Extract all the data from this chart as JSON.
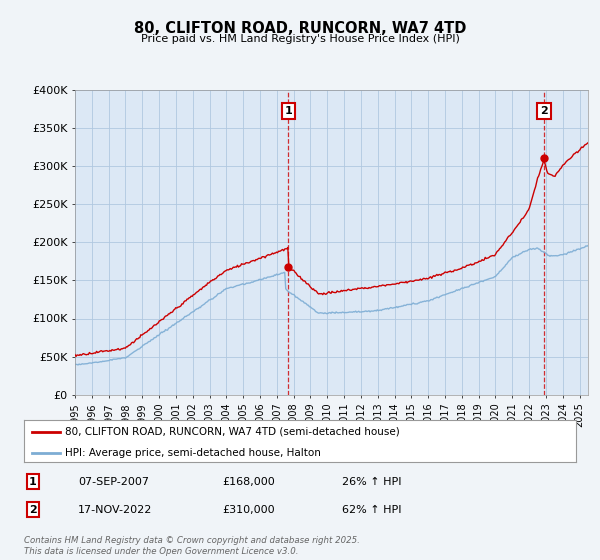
{
  "title": "80, CLIFTON ROAD, RUNCORN, WA7 4TD",
  "subtitle": "Price paid vs. HM Land Registry's House Price Index (HPI)",
  "legend_line1": "80, CLIFTON ROAD, RUNCORN, WA7 4TD (semi-detached house)",
  "legend_line2": "HPI: Average price, semi-detached house, Halton",
  "sale1_label": "1",
  "sale1_date": "07-SEP-2007",
  "sale1_price": "£168,000",
  "sale1_hpi": "26% ↑ HPI",
  "sale2_label": "2",
  "sale2_date": "17-NOV-2022",
  "sale2_price": "£310,000",
  "sale2_hpi": "62% ↑ HPI",
  "footer": "Contains HM Land Registry data © Crown copyright and database right 2025.\nThis data is licensed under the Open Government Licence v3.0.",
  "red_color": "#cc0000",
  "blue_color": "#7dadd4",
  "dashed_color": "#cc0000",
  "background_color": "#f0f4f8",
  "plot_bg_color": "#dce8f5",
  "grid_color": "#b0c8e0",
  "ylim": [
    0,
    400000
  ],
  "yticks": [
    0,
    50000,
    100000,
    150000,
    200000,
    250000,
    300000,
    350000,
    400000
  ],
  "ytick_labels": [
    "£0",
    "£50K",
    "£100K",
    "£150K",
    "£200K",
    "£250K",
    "£300K",
    "£350K",
    "£400K"
  ],
  "sale1_year": 2007.68,
  "sale1_value": 168000,
  "sale2_year": 2022.88,
  "sale2_value": 310000,
  "xmin": 1995,
  "xmax": 2025.5
}
